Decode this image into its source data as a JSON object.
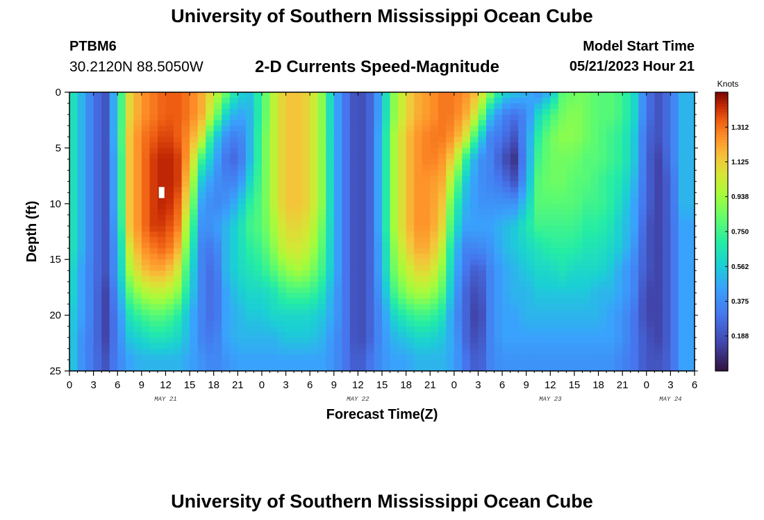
{
  "header": {
    "title": "University of Southern Mississippi Ocean Cube",
    "station": "PTBM6",
    "coordinates": "30.2120N  88.5050W",
    "subtitle": "2-D Currents Speed-Magnitude",
    "start_label": "Model Start Time",
    "start_value": "05/21/2023 Hour 21"
  },
  "footer": {
    "title": "University of Southern Mississippi Ocean Cube"
  },
  "colors": {
    "background": "#ffffff",
    "axis": "#000000",
    "marker": "#ffffff"
  },
  "chart_data": {
    "type": "heatmap",
    "title": "2-D Currents Speed-Magnitude",
    "xlabel": "Forecast Time(Z)",
    "ylabel": "Depth (ft)",
    "units": "Knots",
    "x_unit": "hours from 00Z May 21",
    "xlim": [
      0,
      78
    ],
    "ylim": [
      0,
      25
    ],
    "y_ticks": [
      0,
      5,
      10,
      15,
      20,
      25
    ],
    "x_ticks": [
      {
        "hour": 0,
        "label": "0"
      },
      {
        "hour": 3,
        "label": "3"
      },
      {
        "hour": 6,
        "label": "6"
      },
      {
        "hour": 9,
        "label": "9"
      },
      {
        "hour": 12,
        "label": "12"
      },
      {
        "hour": 15,
        "label": "15"
      },
      {
        "hour": 18,
        "label": "18"
      },
      {
        "hour": 21,
        "label": "21"
      },
      {
        "hour": 24,
        "label": "0"
      },
      {
        "hour": 27,
        "label": "3"
      },
      {
        "hour": 30,
        "label": "6"
      },
      {
        "hour": 33,
        "label": "9"
      },
      {
        "hour": 36,
        "label": "12"
      },
      {
        "hour": 39,
        "label": "15"
      },
      {
        "hour": 42,
        "label": "18"
      },
      {
        "hour": 45,
        "label": "21"
      },
      {
        "hour": 48,
        "label": "0"
      },
      {
        "hour": 51,
        "label": "3"
      },
      {
        "hour": 54,
        "label": "6"
      },
      {
        "hour": 57,
        "label": "9"
      },
      {
        "hour": 60,
        "label": "12"
      },
      {
        "hour": 63,
        "label": "15"
      },
      {
        "hour": 66,
        "label": "18"
      },
      {
        "hour": 69,
        "label": "21"
      },
      {
        "hour": 72,
        "label": "0"
      },
      {
        "hour": 75,
        "label": "3"
      },
      {
        "hour": 78,
        "label": "6"
      }
    ],
    "day_labels": [
      {
        "hour": 12,
        "label": "MAY 21"
      },
      {
        "hour": 36,
        "label": "MAY 22"
      },
      {
        "hour": 60,
        "label": "MAY 23"
      },
      {
        "hour": 75,
        "label": "MAY 24"
      }
    ],
    "colorbar": {
      "min": 0,
      "max": 1.5,
      "ticks": [
        1.312,
        1.125,
        0.938,
        0.75,
        0.562,
        0.375,
        0.188
      ],
      "tick_labels": [
        "1.312",
        "1.125",
        "0.938",
        "0.750",
        "0.562",
        "0.375",
        "0.188"
      ]
    },
    "marker": {
      "hour": 11.5,
      "depth": 9.0
    },
    "grid_hours": [
      0,
      1.5,
      3,
      4.5,
      6,
      7.5,
      9,
      10.5,
      12,
      13.5,
      15,
      16.5,
      18,
      19.5,
      21,
      22.5,
      24,
      25.5,
      27,
      28.5,
      30,
      31.5,
      33,
      34.5,
      36,
      37.5,
      39,
      40.5,
      42,
      43.5,
      45,
      46.5,
      48,
      49.5,
      51,
      52.5,
      54,
      55.5,
      57,
      58.5,
      60,
      61.5,
      63,
      64.5,
      66,
      67.5,
      69,
      70.5,
      72,
      73.5,
      75,
      76.5
    ],
    "grid_depths": [
      0,
      2,
      4,
      6,
      8,
      10,
      12,
      14,
      16,
      18,
      20,
      22,
      24
    ],
    "speed_knots": [
      [
        0.7,
        0.5,
        0.3,
        0.2,
        0.6,
        1.1,
        1.25,
        1.3,
        1.35,
        1.35,
        1.3,
        1.2,
        1.05,
        0.85,
        0.6,
        0.55,
        0.75,
        1.0,
        1.15,
        1.15,
        1.1,
        0.9,
        0.5,
        0.3,
        0.15,
        0.25,
        0.5,
        0.9,
        1.1,
        1.2,
        1.25,
        1.3,
        1.3,
        1.25,
        1.15,
        0.9,
        0.6,
        0.55,
        0.5,
        0.4,
        0.5,
        0.8,
        0.85,
        0.85,
        0.8,
        0.8,
        0.75,
        0.6,
        0.3,
        0.2,
        0.3,
        0.5
      ],
      [
        0.7,
        0.5,
        0.3,
        0.2,
        0.6,
        1.1,
        1.25,
        1.3,
        1.35,
        1.35,
        1.3,
        1.2,
        0.95,
        0.6,
        0.45,
        0.5,
        0.75,
        1.0,
        1.15,
        1.15,
        1.1,
        0.9,
        0.5,
        0.3,
        0.15,
        0.25,
        0.5,
        0.9,
        1.1,
        1.2,
        1.25,
        1.3,
        1.3,
        1.2,
        1.0,
        0.55,
        0.35,
        0.3,
        0.35,
        0.6,
        0.75,
        0.85,
        0.9,
        0.85,
        0.8,
        0.8,
        0.75,
        0.6,
        0.3,
        0.2,
        0.3,
        0.5
      ],
      [
        0.7,
        0.5,
        0.3,
        0.2,
        0.6,
        1.15,
        1.3,
        1.35,
        1.4,
        1.35,
        1.25,
        1.05,
        0.6,
        0.4,
        0.3,
        0.5,
        0.8,
        1.0,
        1.15,
        1.15,
        1.1,
        0.9,
        0.5,
        0.3,
        0.15,
        0.25,
        0.55,
        0.95,
        1.15,
        1.25,
        1.3,
        1.3,
        1.25,
        1.05,
        0.65,
        0.35,
        0.3,
        0.2,
        0.4,
        0.7,
        0.85,
        0.9,
        0.9,
        0.85,
        0.8,
        0.75,
        0.7,
        0.55,
        0.25,
        0.2,
        0.3,
        0.5
      ],
      [
        0.7,
        0.5,
        0.3,
        0.2,
        0.55,
        1.15,
        1.3,
        1.4,
        1.45,
        1.4,
        1.2,
        0.75,
        0.5,
        0.3,
        0.25,
        0.5,
        0.8,
        1.0,
        1.15,
        1.15,
        1.1,
        0.9,
        0.5,
        0.3,
        0.15,
        0.25,
        0.55,
        0.95,
        1.15,
        1.25,
        1.3,
        1.25,
        1.1,
        0.7,
        0.4,
        0.35,
        0.2,
        0.1,
        0.4,
        0.75,
        0.85,
        0.85,
        0.85,
        0.8,
        0.8,
        0.75,
        0.7,
        0.55,
        0.25,
        0.15,
        0.3,
        0.5
      ],
      [
        0.7,
        0.5,
        0.3,
        0.2,
        0.55,
        1.15,
        1.3,
        1.4,
        1.45,
        1.4,
        1.1,
        0.55,
        0.4,
        0.35,
        0.35,
        0.6,
        0.8,
        1.0,
        1.15,
        1.15,
        1.1,
        0.9,
        0.5,
        0.3,
        0.15,
        0.25,
        0.55,
        0.95,
        1.15,
        1.25,
        1.25,
        1.2,
        0.9,
        0.55,
        0.4,
        0.35,
        0.3,
        0.2,
        0.45,
        0.8,
        0.85,
        0.85,
        0.8,
        0.8,
        0.75,
        0.7,
        0.65,
        0.5,
        0.25,
        0.15,
        0.25,
        0.5
      ],
      [
        0.7,
        0.5,
        0.3,
        0.2,
        0.55,
        1.15,
        1.3,
        1.4,
        1.45,
        1.35,
        1.0,
        0.45,
        0.35,
        0.4,
        0.5,
        0.7,
        0.8,
        1.0,
        1.15,
        1.15,
        1.1,
        0.9,
        0.5,
        0.3,
        0.15,
        0.25,
        0.55,
        0.95,
        1.15,
        1.25,
        1.25,
        1.15,
        0.75,
        0.5,
        0.4,
        0.4,
        0.4,
        0.4,
        0.55,
        0.8,
        0.8,
        0.8,
        0.8,
        0.75,
        0.75,
        0.7,
        0.6,
        0.45,
        0.25,
        0.15,
        0.25,
        0.5
      ],
      [
        0.7,
        0.5,
        0.3,
        0.2,
        0.5,
        1.15,
        1.3,
        1.4,
        1.4,
        1.3,
        0.85,
        0.4,
        0.4,
        0.5,
        0.6,
        0.75,
        0.8,
        0.95,
        1.1,
        1.1,
        1.05,
        0.85,
        0.5,
        0.3,
        0.15,
        0.25,
        0.55,
        0.95,
        1.15,
        1.25,
        1.25,
        1.1,
        0.65,
        0.45,
        0.45,
        0.45,
        0.5,
        0.55,
        0.65,
        0.75,
        0.75,
        0.75,
        0.75,
        0.7,
        0.7,
        0.65,
        0.55,
        0.45,
        0.2,
        0.15,
        0.25,
        0.45
      ],
      [
        0.7,
        0.5,
        0.3,
        0.2,
        0.45,
        1.05,
        1.25,
        1.3,
        1.35,
        1.2,
        0.75,
        0.35,
        0.3,
        0.5,
        0.6,
        0.7,
        0.75,
        0.9,
        1.05,
        1.05,
        1.0,
        0.8,
        0.5,
        0.3,
        0.15,
        0.25,
        0.5,
        0.9,
        1.1,
        1.2,
        1.2,
        1.0,
        0.55,
        0.35,
        0.35,
        0.4,
        0.5,
        0.55,
        0.6,
        0.65,
        0.7,
        0.7,
        0.7,
        0.65,
        0.65,
        0.6,
        0.55,
        0.4,
        0.2,
        0.15,
        0.25,
        0.45
      ],
      [
        0.65,
        0.45,
        0.3,
        0.2,
        0.45,
        0.95,
        1.15,
        1.2,
        1.2,
        1.05,
        0.65,
        0.35,
        0.25,
        0.5,
        0.6,
        0.65,
        0.7,
        0.8,
        0.9,
        0.95,
        0.9,
        0.75,
        0.5,
        0.3,
        0.15,
        0.25,
        0.5,
        0.85,
        1.0,
        1.1,
        1.1,
        0.9,
        0.5,
        0.3,
        0.2,
        0.35,
        0.45,
        0.5,
        0.55,
        0.6,
        0.6,
        0.65,
        0.6,
        0.6,
        0.6,
        0.55,
        0.45,
        0.35,
        0.2,
        0.15,
        0.25,
        0.45
      ],
      [
        0.65,
        0.45,
        0.3,
        0.15,
        0.4,
        0.8,
        0.95,
        1.0,
        1.0,
        0.9,
        0.6,
        0.35,
        0.25,
        0.45,
        0.55,
        0.6,
        0.6,
        0.65,
        0.75,
        0.75,
        0.75,
        0.65,
        0.45,
        0.3,
        0.15,
        0.25,
        0.45,
        0.75,
        0.9,
        0.95,
        0.95,
        0.8,
        0.45,
        0.25,
        0.15,
        0.35,
        0.45,
        0.5,
        0.5,
        0.55,
        0.55,
        0.55,
        0.55,
        0.55,
        0.5,
        0.5,
        0.45,
        0.35,
        0.15,
        0.15,
        0.25,
        0.45
      ],
      [
        0.6,
        0.45,
        0.3,
        0.15,
        0.35,
        0.65,
        0.75,
        0.8,
        0.8,
        0.7,
        0.5,
        0.35,
        0.25,
        0.45,
        0.5,
        0.55,
        0.55,
        0.6,
        0.6,
        0.6,
        0.6,
        0.55,
        0.45,
        0.3,
        0.15,
        0.25,
        0.4,
        0.6,
        0.7,
        0.75,
        0.75,
        0.65,
        0.4,
        0.25,
        0.1,
        0.35,
        0.45,
        0.45,
        0.5,
        0.5,
        0.5,
        0.5,
        0.5,
        0.5,
        0.5,
        0.45,
        0.4,
        0.3,
        0.15,
        0.15,
        0.25,
        0.45
      ],
      [
        0.6,
        0.4,
        0.3,
        0.15,
        0.35,
        0.55,
        0.6,
        0.65,
        0.65,
        0.6,
        0.5,
        0.35,
        0.3,
        0.45,
        0.5,
        0.5,
        0.5,
        0.5,
        0.55,
        0.55,
        0.55,
        0.5,
        0.4,
        0.3,
        0.15,
        0.25,
        0.4,
        0.5,
        0.55,
        0.6,
        0.6,
        0.55,
        0.45,
        0.25,
        0.15,
        0.35,
        0.45,
        0.45,
        0.45,
        0.45,
        0.45,
        0.45,
        0.45,
        0.45,
        0.45,
        0.45,
        0.4,
        0.3,
        0.2,
        0.15,
        0.25,
        0.45
      ],
      [
        0.6,
        0.4,
        0.3,
        0.2,
        0.35,
        0.45,
        0.5,
        0.5,
        0.5,
        0.5,
        0.45,
        0.4,
        0.35,
        0.4,
        0.45,
        0.45,
        0.45,
        0.45,
        0.45,
        0.45,
        0.45,
        0.45,
        0.4,
        0.3,
        0.2,
        0.3,
        0.4,
        0.45,
        0.45,
        0.5,
        0.5,
        0.5,
        0.45,
        0.3,
        0.2,
        0.35,
        0.4,
        0.4,
        0.4,
        0.4,
        0.4,
        0.4,
        0.4,
        0.4,
        0.4,
        0.4,
        0.35,
        0.3,
        0.2,
        0.2,
        0.25,
        0.45
      ]
    ]
  }
}
